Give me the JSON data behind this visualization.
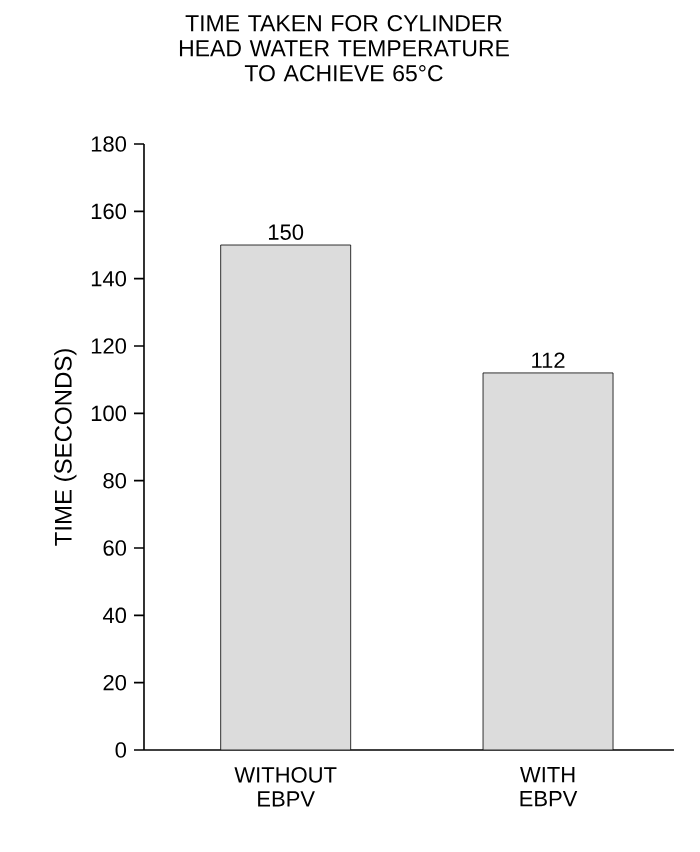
{
  "chart_data": {
    "type": "bar",
    "title": "TIME TAKEN FOR CYLINDER HEAD WATER TEMPERATURE TO ACHIEVE 65°C",
    "ylabel": "TIME (SECONDS)",
    "categories": [
      "WITHOUT EBPV",
      "WITH EBPV"
    ],
    "values": [
      150,
      112
    ],
    "color": "#dcdcdc",
    "ylim": [
      0,
      180
    ],
    "yticks": [
      0,
      20,
      40,
      60,
      80,
      100,
      120,
      140,
      160,
      180
    ],
    "data_labels": true
  }
}
